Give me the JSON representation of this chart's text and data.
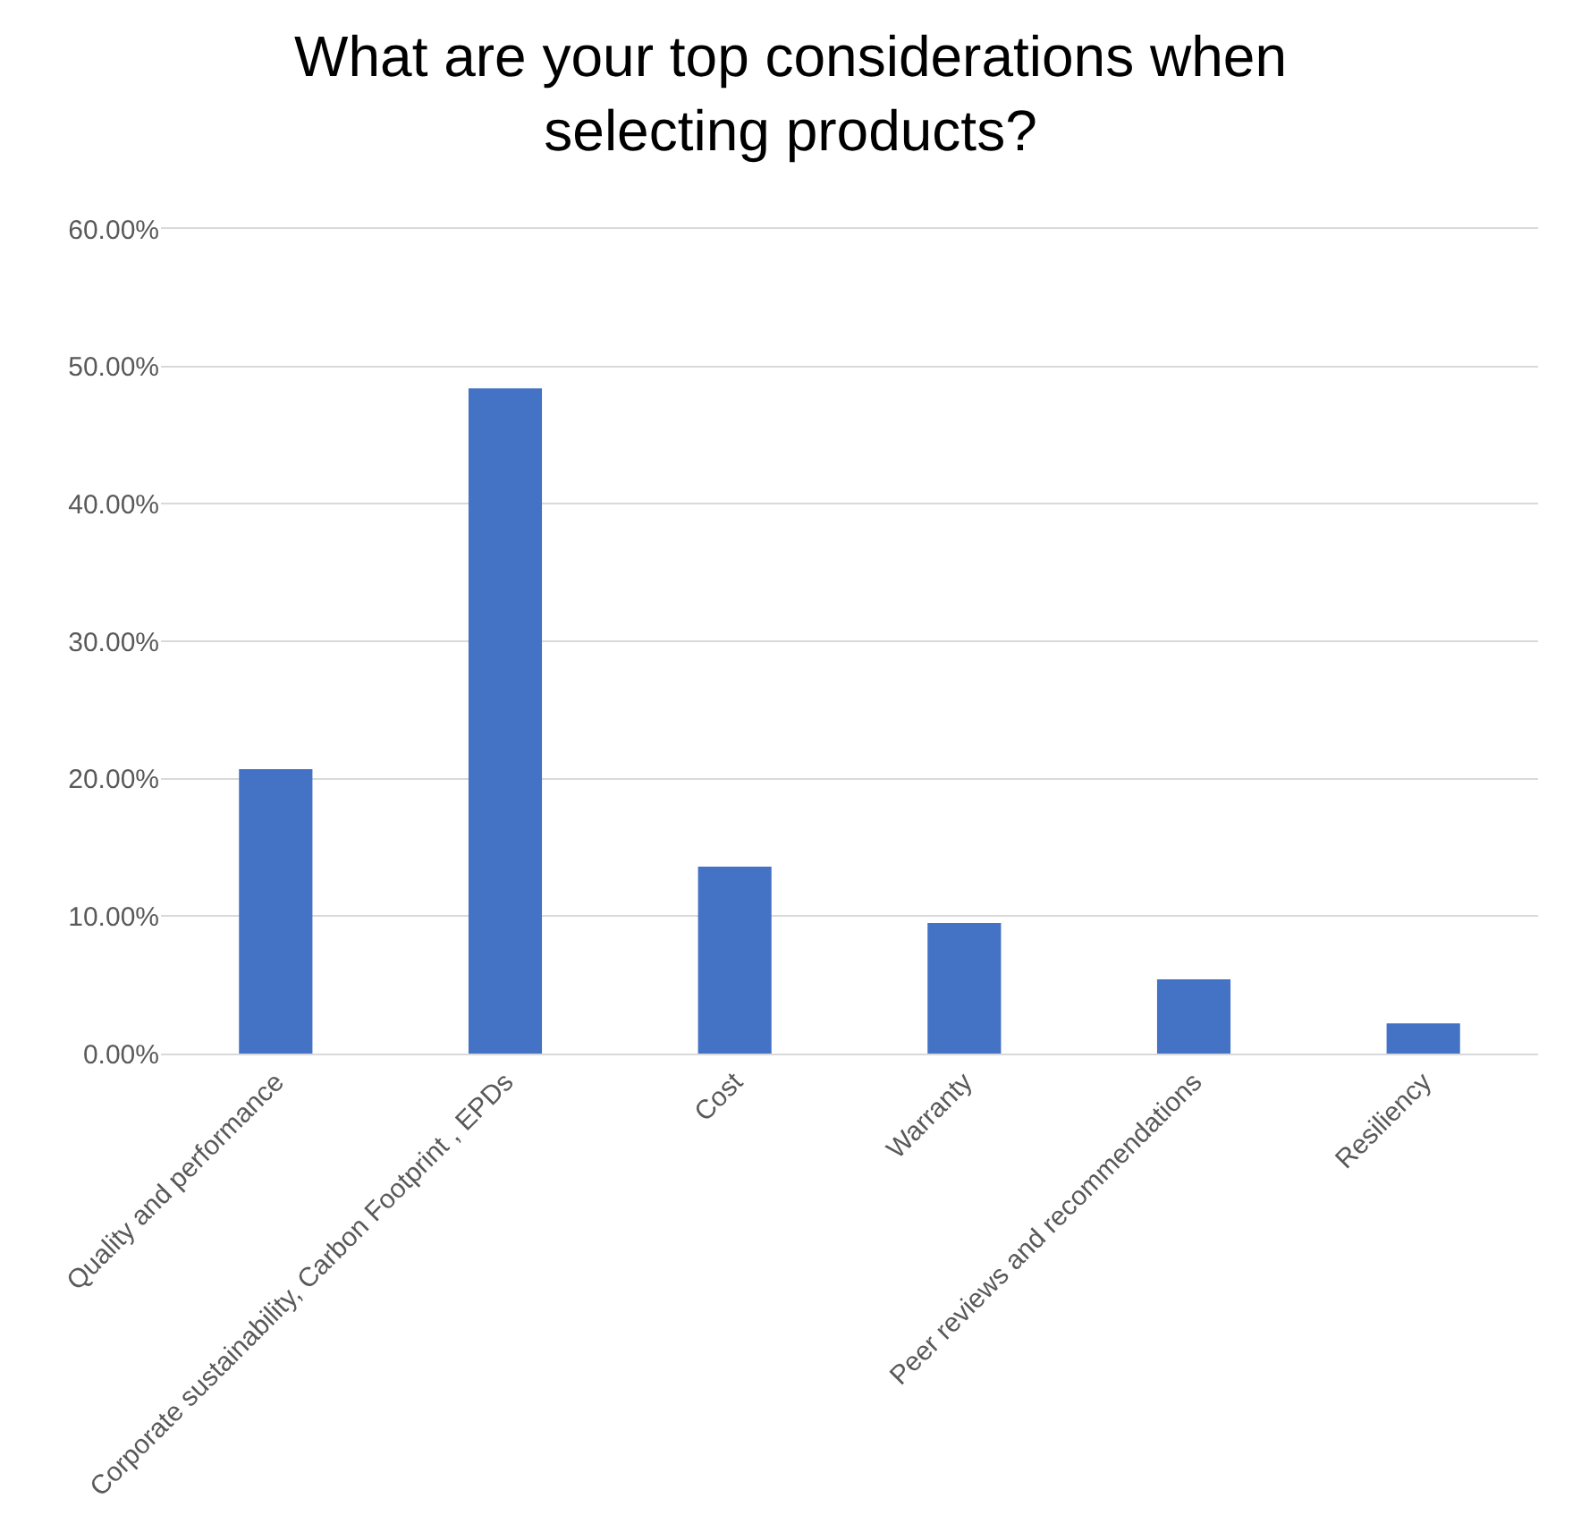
{
  "chart_data": {
    "type": "bar",
    "title": "What are your top considerations when selecting products?",
    "categories": [
      "Quality and performance",
      "Corporate sustainability, Carbon Footprint , EPDs",
      "Cost",
      "Warranty",
      "Peer reviews and recommendations",
      "Resiliency"
    ],
    "values": [
      20.7,
      48.4,
      13.6,
      9.5,
      5.4,
      2.2
    ],
    "color": "#4472c4",
    "ylim": [
      0,
      60
    ],
    "yticks": [
      {
        "value": 0,
        "label": "0.00%"
      },
      {
        "value": 10,
        "label": "10.00%"
      },
      {
        "value": 20,
        "label": "20.00%"
      },
      {
        "value": 30,
        "label": "30.00%"
      },
      {
        "value": 40,
        "label": "40.00%"
      },
      {
        "value": 50,
        "label": "50.00%"
      },
      {
        "value": 60,
        "label": "60.00%"
      }
    ],
    "grid": "y"
  }
}
